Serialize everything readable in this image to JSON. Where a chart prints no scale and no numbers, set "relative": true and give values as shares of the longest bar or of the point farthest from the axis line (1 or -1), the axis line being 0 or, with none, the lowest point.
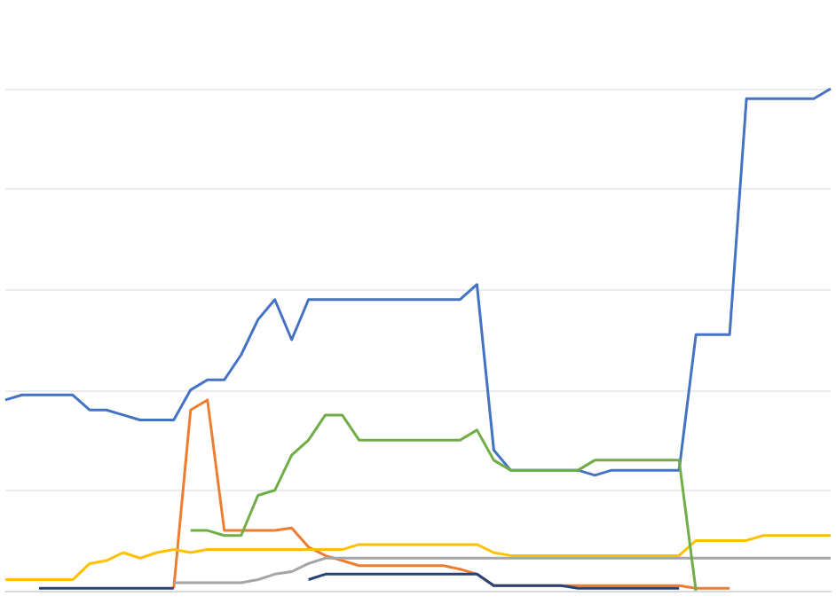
{
  "chart_data": {
    "type": "line",
    "relative": true,
    "grid": "y",
    "marker": "none",
    "line_style": "solid",
    "categories": [
      null,
      null,
      null,
      null,
      null,
      null,
      null,
      null,
      null,
      null,
      null,
      null,
      null,
      null,
      null,
      null,
      null,
      null,
      null,
      null,
      null,
      null,
      null,
      null,
      null,
      null,
      null,
      null,
      null,
      null,
      null,
      null,
      null,
      null,
      null,
      null,
      null,
      null,
      null,
      null,
      null,
      null,
      null,
      null,
      null,
      null,
      null,
      null,
      null,
      null
    ],
    "series": [
      {
        "color": "#4472c4",
        "values": [
          0.38,
          0.39,
          0.39,
          0.39,
          0.39,
          0.36,
          0.36,
          0.35,
          0.34,
          0.34,
          0.34,
          0.4,
          0.42,
          0.42,
          0.47,
          0.54,
          0.58,
          0.5,
          0.58,
          0.58,
          0.58,
          0.58,
          0.58,
          0.58,
          0.58,
          0.58,
          0.58,
          0.58,
          0.61,
          0.28,
          0.24,
          0.24,
          0.24,
          0.24,
          0.24,
          0.23,
          0.24,
          0.24,
          0.24,
          0.24,
          0.24,
          0.51,
          0.51,
          0.51,
          0.98,
          0.98,
          0.98,
          0.98,
          0.98,
          1
        ]
      },
      {
        "color": "#ed7d31",
        "values": [
          null,
          null,
          null,
          null,
          null,
          null,
          null,
          null,
          null,
          null,
          0.005,
          0.36,
          0.38,
          0.12,
          0.12,
          0.12,
          0.12,
          0.125,
          0.087,
          0.07,
          0.06,
          0.05,
          0.05,
          0.05,
          0.05,
          0.05,
          0.05,
          0.043,
          0.033,
          0.01,
          0.01,
          0.01,
          0.01,
          0.01,
          0.01,
          0.01,
          0.01,
          0.01,
          0.01,
          0.01,
          0.01,
          0.005,
          0.005,
          0.005,
          null,
          null,
          null,
          null,
          null,
          null
        ]
      },
      {
        "color": "#a5a5a5",
        "values": [
          null,
          null,
          null,
          null,
          null,
          null,
          null,
          null,
          null,
          null,
          0.016,
          0.016,
          0.016,
          0.016,
          0.016,
          0.022,
          0.033,
          0.038,
          0.054,
          0.065,
          0.065,
          0.065,
          0.065,
          0.065,
          0.065,
          0.065,
          0.065,
          0.065,
          0.065,
          0.065,
          0.065,
          0.065,
          0.065,
          0.065,
          0.065,
          0.065,
          0.065,
          0.065,
          0.065,
          0.065,
          0.065,
          0.065,
          0.065,
          0.065,
          0.065,
          0.065,
          0.065,
          0.065,
          0.065,
          0.065
        ]
      },
      {
        "color": "#ffc000",
        "values": [
          0.022,
          0.022,
          0.022,
          0.022,
          0.022,
          0.054,
          0.06,
          0.076,
          0.065,
          0.076,
          0.082,
          0.076,
          0.082,
          0.082,
          0.082,
          0.082,
          0.082,
          0.082,
          0.082,
          0.082,
          0.082,
          0.092,
          0.092,
          0.092,
          0.092,
          0.092,
          0.092,
          0.092,
          0.092,
          0.076,
          0.07,
          0.07,
          0.07,
          0.07,
          0.07,
          0.07,
          0.07,
          0.07,
          0.07,
          0.07,
          0.07,
          0.1,
          0.1,
          0.1,
          0.1,
          0.11,
          0.11,
          0.11,
          0.11,
          0.11
        ]
      },
      {
        "color": "#264478",
        "values": [
          null,
          null,
          0.005,
          0.005,
          0.005,
          0.005,
          0.005,
          0.005,
          0.005,
          0.005,
          0.005,
          null,
          null,
          null,
          null,
          null,
          null,
          null,
          0.022,
          0.033,
          0.033,
          0.033,
          0.033,
          0.033,
          0.033,
          0.033,
          0.033,
          0.033,
          0.033,
          0.01,
          0.01,
          0.01,
          0.01,
          0.01,
          0.005,
          0.005,
          0.005,
          0.005,
          0.005,
          0.005,
          0.005,
          null,
          null,
          null,
          null,
          null,
          null,
          null,
          null,
          null
        ]
      },
      {
        "color": "#70ad47",
        "values": [
          null,
          null,
          null,
          null,
          null,
          null,
          null,
          null,
          null,
          null,
          null,
          0.12,
          0.12,
          0.11,
          0.11,
          0.19,
          0.2,
          0.27,
          0.3,
          0.35,
          0.35,
          0.3,
          0.3,
          0.3,
          0.3,
          0.3,
          0.3,
          0.3,
          0.32,
          0.26,
          0.24,
          0.24,
          0.24,
          0.24,
          0.24,
          0.26,
          0.26,
          0.26,
          0.26,
          0.26,
          0.26,
          0,
          null,
          null,
          null,
          null,
          null,
          null,
          null,
          null
        ]
      }
    ]
  }
}
